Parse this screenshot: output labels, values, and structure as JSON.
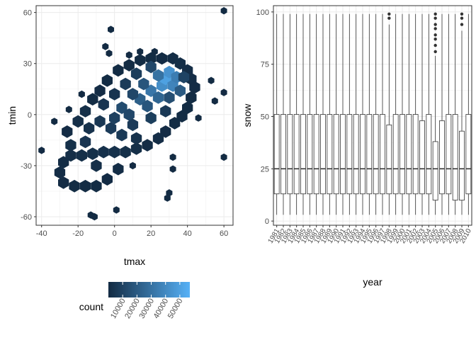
{
  "chart_data": [
    {
      "type": "hexbin",
      "xlabel": "tmax",
      "ylabel": "tmin",
      "xlim": [
        -43,
        65
      ],
      "ylim": [
        -65,
        64
      ],
      "x_ticks": [
        -40,
        -20,
        0,
        20,
        40,
        60
      ],
      "y_ticks": [
        -60,
        -30,
        0,
        30,
        60
      ],
      "x_tick_labels": [
        "-40",
        "-20",
        "0",
        "20",
        "40",
        "60"
      ],
      "y_tick_labels": [
        "-60",
        "-30",
        "0",
        "30",
        "60"
      ],
      "grid": true,
      "legend": {
        "title": "count",
        "placement": "bottom",
        "breaks": [
          10000,
          20000,
          30000,
          40000,
          50000
        ],
        "break_labels": [
          "10000",
          "20000",
          "30000",
          "40000",
          "50000"
        ],
        "range": [
          0,
          57000
        ],
        "low_color": "#132B43",
        "high_color": "#56B1F7"
      },
      "bins": [
        {
          "x": -2,
          "y": 50,
          "count": 1
        },
        {
          "x": 60,
          "y": 61,
          "count": 1
        },
        {
          "x": -5,
          "y": 40,
          "count": 3
        },
        {
          "x": -3,
          "y": 36,
          "count": 2
        },
        {
          "x": 14,
          "y": 37,
          "count": 1
        },
        {
          "x": 22,
          "y": 37,
          "count": 1
        },
        {
          "x": 8,
          "y": 35,
          "count": 1
        },
        {
          "x": 53,
          "y": 20,
          "count": 2
        },
        {
          "x": 60,
          "y": 13,
          "count": 1
        },
        {
          "x": 55,
          "y": 8,
          "count": 1
        },
        {
          "x": 46,
          "y": -2,
          "count": 1
        },
        {
          "x": -18,
          "y": 12,
          "count": 1
        },
        {
          "x": -25,
          "y": 3,
          "count": 1
        },
        {
          "x": -33,
          "y": -4,
          "count": 1
        },
        {
          "x": -40,
          "y": -21,
          "count": 1
        },
        {
          "x": 60,
          "y": -25,
          "count": 1
        },
        {
          "x": 32,
          "y": -25,
          "count": 1
        },
        {
          "x": 32,
          "y": -32,
          "count": 1
        },
        {
          "x": 30,
          "y": -46,
          "count": 1
        },
        {
          "x": 29,
          "y": -49,
          "count": 1
        },
        {
          "x": -13,
          "y": -59,
          "count": 1
        },
        {
          "x": -11,
          "y": -60,
          "count": 1
        },
        {
          "x": 1,
          "y": -56,
          "count": 1
        },
        {
          "x": 10,
          "y": -30,
          "count": 1
        },
        {
          "x": -12,
          "y": 9,
          "count": 300
        },
        {
          "x": -8,
          "y": 14,
          "count": 500
        },
        {
          "x": -4,
          "y": 20,
          "count": 400
        },
        {
          "x": 2,
          "y": 26,
          "count": 300
        },
        {
          "x": 8,
          "y": 29,
          "count": 300
        },
        {
          "x": 14,
          "y": 32,
          "count": 300
        },
        {
          "x": 20,
          "y": 33,
          "count": 400
        },
        {
          "x": 26,
          "y": 33,
          "count": 600
        },
        {
          "x": 32,
          "y": 33,
          "count": 800
        },
        {
          "x": 36,
          "y": 30,
          "count": 1200
        },
        {
          "x": 40,
          "y": 26,
          "count": 1000
        },
        {
          "x": 42,
          "y": 21,
          "count": 800
        },
        {
          "x": 44,
          "y": 16,
          "count": 500
        },
        {
          "x": 42,
          "y": 10,
          "count": 400
        },
        {
          "x": 40,
          "y": 4,
          "count": 300
        },
        {
          "x": 37,
          "y": -1,
          "count": 300
        },
        {
          "x": 33,
          "y": -5,
          "count": 400
        },
        {
          "x": 28,
          "y": -10,
          "count": 600
        },
        {
          "x": 24,
          "y": -14,
          "count": 800
        },
        {
          "x": 18,
          "y": -18,
          "count": 1000
        },
        {
          "x": 12,
          "y": -20,
          "count": 1500
        },
        {
          "x": 6,
          "y": -22,
          "count": 2000
        },
        {
          "x": 0,
          "y": -22,
          "count": 2500
        },
        {
          "x": -6,
          "y": -22,
          "count": 2500
        },
        {
          "x": -12,
          "y": -23,
          "count": 2000
        },
        {
          "x": -18,
          "y": -24,
          "count": 2000
        },
        {
          "x": -24,
          "y": -24,
          "count": 1500
        },
        {
          "x": -28,
          "y": -28,
          "count": 1000
        },
        {
          "x": -30,
          "y": -34,
          "count": 800
        },
        {
          "x": -28,
          "y": -40,
          "count": 500
        },
        {
          "x": -22,
          "y": -42,
          "count": 400
        },
        {
          "x": -16,
          "y": -42,
          "count": 400
        },
        {
          "x": -10,
          "y": -42,
          "count": 300
        },
        {
          "x": -4,
          "y": -38,
          "count": 200
        },
        {
          "x": -26,
          "y": -10,
          "count": 500
        },
        {
          "x": -20,
          "y": -4,
          "count": 1500
        },
        {
          "x": -14,
          "y": -8,
          "count": 3000
        },
        {
          "x": -8,
          "y": -4,
          "count": 5000
        },
        {
          "x": -2,
          "y": -8,
          "count": 7000
        },
        {
          "x": 4,
          "y": -12,
          "count": 6000
        },
        {
          "x": -16,
          "y": -16,
          "count": 4000
        },
        {
          "x": -24,
          "y": -18,
          "count": 2000
        },
        {
          "x": -16,
          "y": 2,
          "count": 2000
        },
        {
          "x": -6,
          "y": 6,
          "count": 4000
        },
        {
          "x": 0,
          "y": -2,
          "count": 9000
        },
        {
          "x": 4,
          "y": 4,
          "count": 14000
        },
        {
          "x": 8,
          "y": 0,
          "count": 12000
        },
        {
          "x": 10,
          "y": -6,
          "count": 7000
        },
        {
          "x": 14,
          "y": 9,
          "count": 22000
        },
        {
          "x": 18,
          "y": 5,
          "count": 18000
        },
        {
          "x": 10,
          "y": 12,
          "count": 12000
        },
        {
          "x": 20,
          "y": 14,
          "count": 32000
        },
        {
          "x": 24,
          "y": 10,
          "count": 25000
        },
        {
          "x": 16,
          "y": 18,
          "count": 18000
        },
        {
          "x": 26,
          "y": 17,
          "count": 42000
        },
        {
          "x": 28,
          "y": 21,
          "count": 50000
        },
        {
          "x": 32,
          "y": 17,
          "count": 38000
        },
        {
          "x": 24,
          "y": 23,
          "count": 30000
        },
        {
          "x": 30,
          "y": 25,
          "count": 44000
        },
        {
          "x": 34,
          "y": 22,
          "count": 35000
        },
        {
          "x": 12,
          "y": 24,
          "count": 8000
        },
        {
          "x": 6,
          "y": 18,
          "count": 7000
        },
        {
          "x": 0,
          "y": 12,
          "count": 4000
        },
        {
          "x": 20,
          "y": 28,
          "count": 12000
        },
        {
          "x": 30,
          "y": 10,
          "count": 15000
        },
        {
          "x": 36,
          "y": 14,
          "count": 20000
        },
        {
          "x": 20,
          "y": -2,
          "count": 8000
        },
        {
          "x": 28,
          "y": 2,
          "count": 6000
        },
        {
          "x": 12,
          "y": -14,
          "count": 3000
        },
        {
          "x": 38,
          "y": 22,
          "count": 10000
        },
        {
          "x": -10,
          "y": -30,
          "count": 1500
        },
        {
          "x": 2,
          "y": -32,
          "count": 800
        }
      ]
    },
    {
      "type": "boxplot",
      "xlabel": "year",
      "ylabel": "snow",
      "ylim": [
        -2,
        103
      ],
      "y_ticks": [
        0,
        25,
        50,
        75,
        100
      ],
      "y_tick_labels": [
        "0",
        "25",
        "50",
        "75",
        "100"
      ],
      "grid": true,
      "categories": [
        "1981",
        "1982",
        "1983",
        "1984",
        "1985",
        "1986",
        "1987",
        "1988",
        "1989",
        "1990",
        "1991",
        "1992",
        "1993",
        "1994",
        "1995",
        "1996",
        "1997",
        "1998",
        "1999",
        "2000",
        "2001",
        "2002",
        "2003",
        "2004",
        "2005",
        "2006",
        "2007",
        "2008",
        "2009",
        "2010"
      ],
      "boxes": [
        {
          "year": "1981",
          "whisker_low": 3,
          "q1": 13,
          "median": 25,
          "q3": 51,
          "whisker_high": 99,
          "outliers": []
        },
        {
          "year": "1982",
          "whisker_low": 3,
          "q1": 13,
          "median": 25,
          "q3": 51,
          "whisker_high": 99,
          "outliers": []
        },
        {
          "year": "1983",
          "whisker_low": 3,
          "q1": 13,
          "median": 25,
          "q3": 51,
          "whisker_high": 99,
          "outliers": []
        },
        {
          "year": "1984",
          "whisker_low": 3,
          "q1": 13,
          "median": 25,
          "q3": 51,
          "whisker_high": 99,
          "outliers": []
        },
        {
          "year": "1985",
          "whisker_low": 3,
          "q1": 13,
          "median": 25,
          "q3": 51,
          "whisker_high": 99,
          "outliers": []
        },
        {
          "year": "1986",
          "whisker_low": 3,
          "q1": 13,
          "median": 25,
          "q3": 51,
          "whisker_high": 99,
          "outliers": []
        },
        {
          "year": "1987",
          "whisker_low": 3,
          "q1": 13,
          "median": 25,
          "q3": 51,
          "whisker_high": 99,
          "outliers": []
        },
        {
          "year": "1988",
          "whisker_low": 3,
          "q1": 13,
          "median": 25,
          "q3": 51,
          "whisker_high": 99,
          "outliers": []
        },
        {
          "year": "1989",
          "whisker_low": 3,
          "q1": 13,
          "median": 25,
          "q3": 51,
          "whisker_high": 99,
          "outliers": []
        },
        {
          "year": "1990",
          "whisker_low": 3,
          "q1": 13,
          "median": 25,
          "q3": 51,
          "whisker_high": 99,
          "outliers": []
        },
        {
          "year": "1991",
          "whisker_low": 3,
          "q1": 13,
          "median": 25,
          "q3": 51,
          "whisker_high": 99,
          "outliers": []
        },
        {
          "year": "1992",
          "whisker_low": 3,
          "q1": 13,
          "median": 25,
          "q3": 51,
          "whisker_high": 99,
          "outliers": []
        },
        {
          "year": "1993",
          "whisker_low": 3,
          "q1": 13,
          "median": 25,
          "q3": 51,
          "whisker_high": 99,
          "outliers": []
        },
        {
          "year": "1994",
          "whisker_low": 3,
          "q1": 13,
          "median": 25,
          "q3": 51,
          "whisker_high": 99,
          "outliers": []
        },
        {
          "year": "1995",
          "whisker_low": 3,
          "q1": 13,
          "median": 25,
          "q3": 51,
          "whisker_high": 99,
          "outliers": []
        },
        {
          "year": "1996",
          "whisker_low": 3,
          "q1": 13,
          "median": 25,
          "q3": 51,
          "whisker_high": 99,
          "outliers": []
        },
        {
          "year": "1997",
          "whisker_low": 3,
          "q1": 13,
          "median": 25,
          "q3": 51,
          "whisker_high": 99,
          "outliers": []
        },
        {
          "year": "1998",
          "whisker_low": 3,
          "q1": 13,
          "median": 25,
          "q3": 46,
          "whisker_high": 94,
          "outliers": [
            97,
            99
          ]
        },
        {
          "year": "1999",
          "whisker_low": 3,
          "q1": 13,
          "median": 25,
          "q3": 51,
          "whisker_high": 99,
          "outliers": []
        },
        {
          "year": "2000",
          "whisker_low": 3,
          "q1": 13,
          "median": 25,
          "q3": 51,
          "whisker_high": 99,
          "outliers": []
        },
        {
          "year": "2001",
          "whisker_low": 3,
          "q1": 13,
          "median": 25,
          "q3": 51,
          "whisker_high": 99,
          "outliers": []
        },
        {
          "year": "2002",
          "whisker_low": 3,
          "q1": 13,
          "median": 25,
          "q3": 51,
          "whisker_high": 99,
          "outliers": []
        },
        {
          "year": "2003",
          "whisker_low": 3,
          "q1": 13,
          "median": 25,
          "q3": 48,
          "whisker_high": 99,
          "outliers": []
        },
        {
          "year": "2004",
          "whisker_low": 3,
          "q1": 13,
          "median": 25,
          "q3": 51,
          "whisker_high": 99,
          "outliers": []
        },
        {
          "year": "2005",
          "whisker_low": 3,
          "q1": 10,
          "median": 25,
          "q3": 38,
          "whisker_high": 79,
          "outliers": [
            81,
            84,
            87,
            89,
            92,
            94,
            97,
            99
          ]
        },
        {
          "year": "2006",
          "whisker_low": 3,
          "q1": 13,
          "median": 25,
          "q3": 48,
          "whisker_high": 99,
          "outliers": []
        },
        {
          "year": "2007",
          "whisker_low": 3,
          "q1": 13,
          "median": 25,
          "q3": 51,
          "whisker_high": 99,
          "outliers": []
        },
        {
          "year": "2008",
          "whisker_low": 3,
          "q1": 10,
          "median": 25,
          "q3": 51,
          "whisker_high": 99,
          "outliers": []
        },
        {
          "year": "2009",
          "whisker_low": 3,
          "q1": 10,
          "median": 25,
          "q3": 43,
          "whisker_high": 91,
          "outliers": [
            94,
            97,
            99
          ]
        },
        {
          "year": "2010",
          "whisker_low": 3,
          "q1": 13,
          "median": 25,
          "q3": 51,
          "whisker_high": 99,
          "outliers": []
        }
      ]
    }
  ]
}
